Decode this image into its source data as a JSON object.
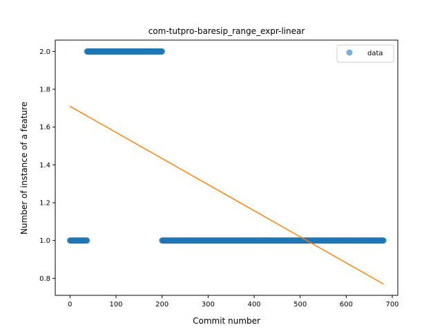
{
  "chart_data": {
    "type": "scatter",
    "title": "com-tutpro-baresip_range_expr-linear",
    "xlabel": "Commit number",
    "ylabel": "Number of instance of a feature",
    "xlim": [
      -32,
      712
    ],
    "ylim": [
      0.71,
      2.06
    ],
    "xticks": [
      0,
      100,
      200,
      300,
      400,
      500,
      600,
      700
    ],
    "yticks": [
      0.8,
      1.0,
      1.2,
      1.4,
      1.6,
      1.8,
      2.0
    ],
    "xtick_labels": [
      "0",
      "100",
      "200",
      "300",
      "400",
      "500",
      "600",
      "700"
    ],
    "ytick_labels": [
      "0.8",
      "1.0",
      "1.2",
      "1.4",
      "1.6",
      "1.8",
      "2.0"
    ],
    "grid": false,
    "legend": {
      "placement": "top-right",
      "entries": [
        "data"
      ]
    },
    "series": [
      {
        "name": "data",
        "kind": "scatter",
        "color": "#1f77b4",
        "segments": [
          {
            "x_start": 0,
            "x_end": 37,
            "y": 1.0
          },
          {
            "x_start": 37,
            "x_end": 200,
            "y": 2.0
          },
          {
            "x_start": 200,
            "x_end": 681,
            "y": 1.0
          }
        ]
      },
      {
        "kind": "line",
        "color": "#ff7f0e",
        "x": [
          0,
          681
        ],
        "y": [
          1.71,
          0.77
        ]
      }
    ]
  }
}
